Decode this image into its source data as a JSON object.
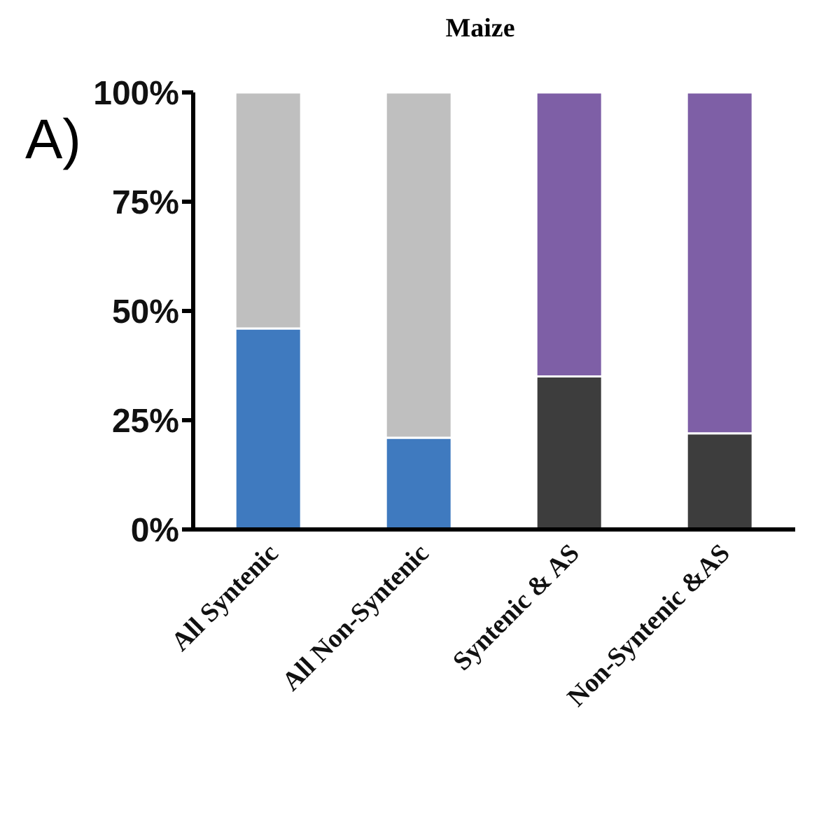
{
  "chart_data": {
    "type": "bar",
    "title": "Maize",
    "annotations": [
      "A)"
    ],
    "stacked": true,
    "categories": [
      "All Syntenic",
      "All Non-Syntenic",
      "Syntenic & AS",
      "Non-Syntenic &AS"
    ],
    "series": [
      {
        "colors": [
          "#3f7abf",
          "#3f7abf",
          "#3d3d3d",
          "#3d3d3d"
        ],
        "values": [
          46,
          21,
          35,
          22
        ]
      },
      {
        "colors": [
          "#bfbfbf",
          "#bfbfbf",
          "#7e5fa6",
          "#7e5fa6"
        ],
        "values": [
          54,
          79,
          65,
          78
        ]
      }
    ],
    "ylim": [
      0,
      100
    ],
    "yticks": [
      {
        "value": 0,
        "label": "0%"
      },
      {
        "value": 25,
        "label": "25%"
      },
      {
        "value": 50,
        "label": "50%"
      },
      {
        "value": 75,
        "label": "75%"
      },
      {
        "value": 100,
        "label": "100%"
      }
    ],
    "grid": false,
    "legend": false
  }
}
